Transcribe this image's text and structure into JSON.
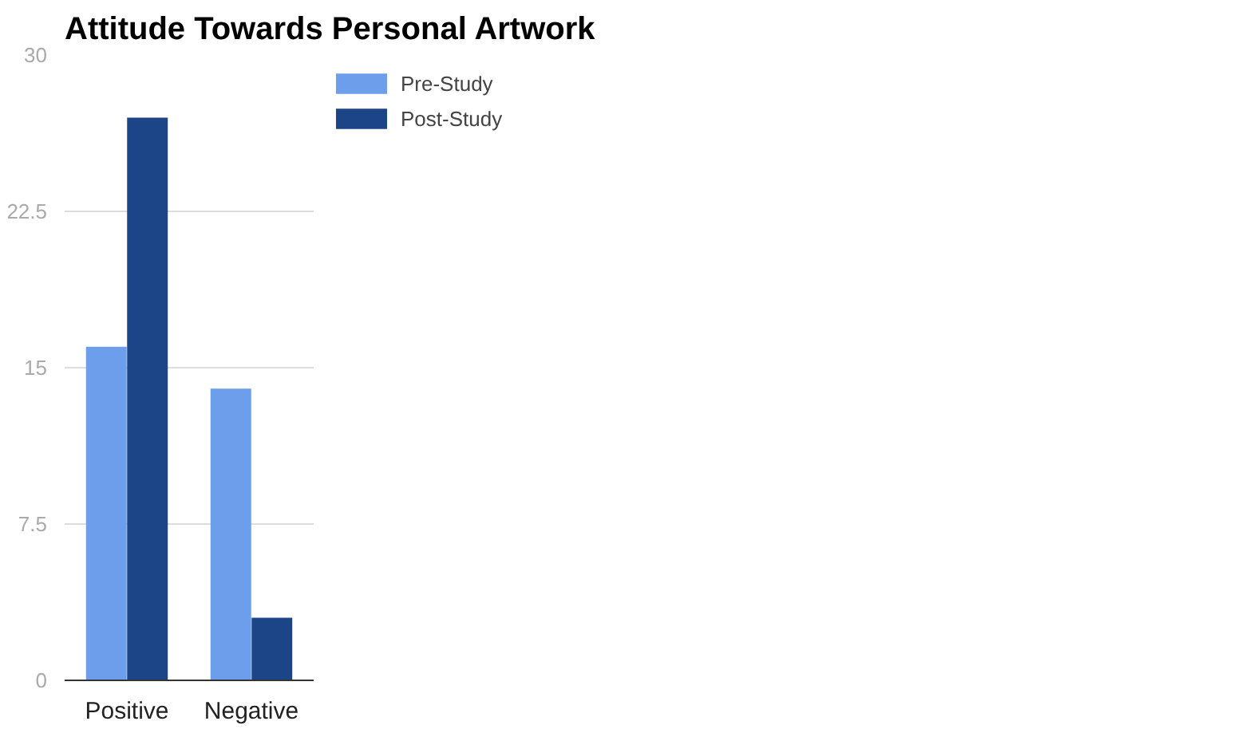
{
  "chart_data": {
    "type": "bar",
    "title": "Attitude Towards Personal Artwork",
    "categories": [
      "Positive",
      "Negative"
    ],
    "series": [
      {
        "name": "Pre-Study",
        "color": "#6d9eeb",
        "values": [
          16,
          14
        ]
      },
      {
        "name": "Post-Study",
        "color": "#1c4587",
        "values": [
          27,
          3
        ]
      }
    ],
    "ylim": [
      0,
      30
    ],
    "yticks": [
      0,
      7.5,
      15,
      22.5,
      30
    ],
    "grid": "y",
    "legend": "top right"
  }
}
